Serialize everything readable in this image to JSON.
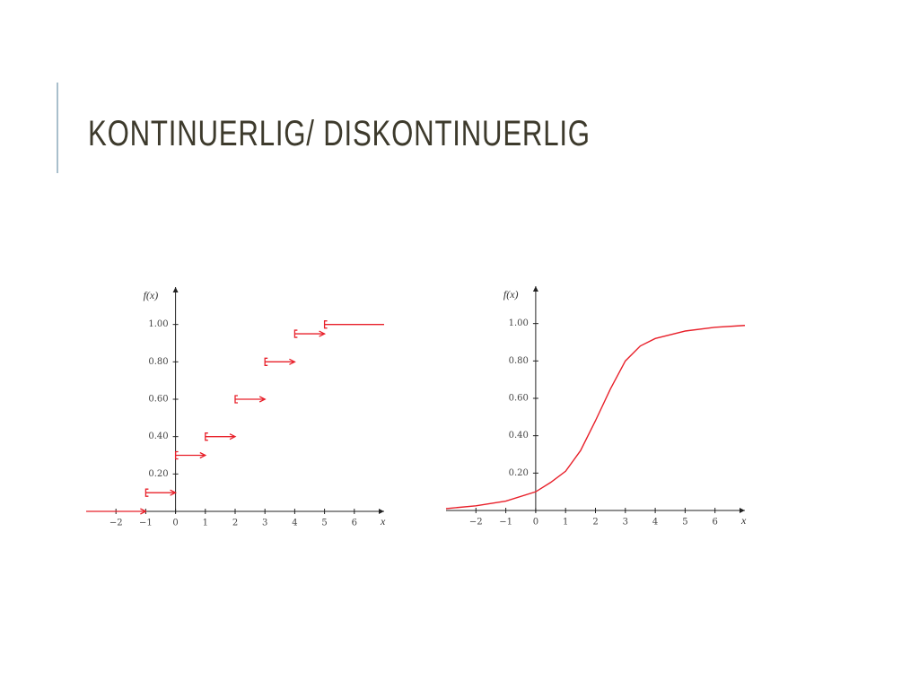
{
  "title": "KONTINUERLIG/ DISKONTINUERLIG",
  "chart_data": [
    {
      "type": "step",
      "y_label": "f(x)",
      "x_label": "x",
      "color": "#e8202a",
      "x": [
        -3,
        -1,
        0,
        1,
        2,
        3,
        4,
        5
      ],
      "values": [
        0,
        0.1,
        0.3,
        0.4,
        0.6,
        0.8,
        0.95,
        1.0
      ],
      "xlim": [
        -3,
        7
      ],
      "ylim": [
        0,
        1.2
      ],
      "xticks": [
        {
          "value": -2,
          "label": "−2"
        },
        {
          "value": -1,
          "label": "−1"
        },
        0,
        1,
        2,
        3,
        4,
        5,
        6
      ],
      "yticks": [
        {
          "value": 0.2,
          "label": "0.20"
        },
        {
          "value": 0.4,
          "label": "0.40"
        },
        {
          "value": 0.6,
          "label": "0.60"
        },
        {
          "value": 0.8,
          "label": "0.80"
        },
        {
          "value": 1.0,
          "label": "1.00"
        }
      ]
    },
    {
      "type": "line",
      "y_label": "f(x)",
      "x_label": "x",
      "color": "#e8202a",
      "x": [
        -3,
        -2,
        -1,
        0,
        0.5,
        1,
        1.5,
        2,
        2.5,
        3,
        3.5,
        4,
        5,
        6,
        7
      ],
      "values": [
        0.01,
        0.025,
        0.05,
        0.1,
        0.15,
        0.21,
        0.32,
        0.48,
        0.65,
        0.8,
        0.88,
        0.92,
        0.96,
        0.98,
        0.99
      ],
      "xlim": [
        -3,
        7
      ],
      "ylim": [
        0,
        1.2
      ],
      "xticks": [
        {
          "value": -2,
          "label": "−2"
        },
        {
          "value": -1,
          "label": "−1"
        },
        0,
        1,
        2,
        3,
        4,
        5,
        6
      ],
      "yticks": [
        {
          "value": 0.2,
          "label": "0.20"
        },
        {
          "value": 0.4,
          "label": "0.40"
        },
        {
          "value": 0.6,
          "label": "0.60"
        },
        {
          "value": 0.8,
          "label": "0.80"
        },
        {
          "value": 1.0,
          "label": "1.00"
        }
      ]
    }
  ]
}
